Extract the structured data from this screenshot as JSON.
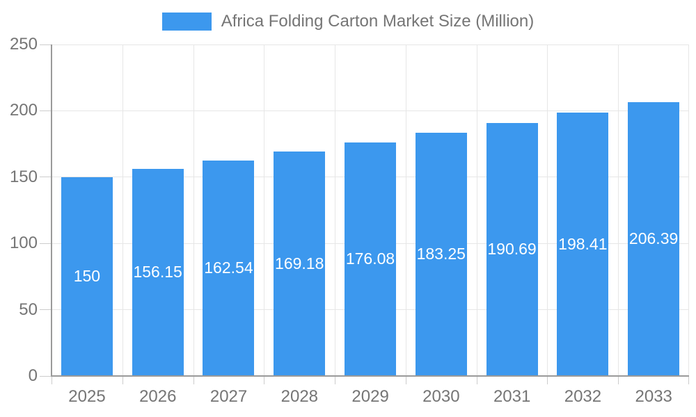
{
  "chart_data": {
    "type": "bar",
    "title": "Africa Folding Carton Market Size (Million)",
    "categories": [
      "2025",
      "2026",
      "2027",
      "2028",
      "2029",
      "2030",
      "2031",
      "2032",
      "2033"
    ],
    "values": [
      150,
      156.15,
      162.54,
      169.18,
      176.08,
      183.25,
      190.69,
      198.41,
      206.39
    ],
    "value_labels": [
      "150",
      "156.15",
      "162.54",
      "169.18",
      "176.08",
      "183.25",
      "190.69",
      "198.41",
      "206.39"
    ],
    "xlabel": "",
    "ylabel": "",
    "ylim": [
      0,
      250
    ],
    "yticks": [
      0,
      50,
      100,
      150,
      200,
      250
    ],
    "grid": "on",
    "legend_position": "top-center",
    "colors": {
      "bar": "#3c98ee",
      "bar_value_text": "#ffffff",
      "axis_line": "#9a9a9a",
      "gridline": "#e6e6e6",
      "tick": "#cccccc",
      "axis_text": "#757575",
      "legend_text": "#757575",
      "background": "#ffffff"
    }
  }
}
